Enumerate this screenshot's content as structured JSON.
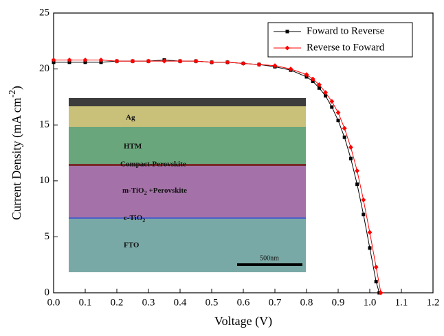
{
  "chart_data": {
    "type": "line",
    "x_label": "Voltage (V)",
    "y_label": {
      "text": "Current Density (mA cm",
      "sup": "-2",
      "after": ")"
    },
    "xlim": [
      0,
      1.2
    ],
    "xticks": [
      {
        "value": 0,
        "label": "0.0"
      },
      0.1,
      0.2,
      0.3,
      0.4,
      0.5,
      0.6,
      0.7,
      0.8,
      0.9,
      {
        "value": 1,
        "label": "1.0"
      },
      1.1,
      1.2
    ],
    "ylim": [
      0,
      25
    ],
    "yticks": [
      0,
      5,
      10,
      15,
      20,
      25
    ],
    "legend": "upper right",
    "series": [
      {
        "name": "Foward to Reverse",
        "color": "#000000",
        "marker": "square",
        "x": [
          0,
          0.05,
          0.1,
          0.15,
          0.2,
          0.25,
          0.3,
          0.35,
          0.4,
          0.45,
          0.5,
          0.55,
          0.6,
          0.65,
          0.7,
          0.75,
          0.8,
          0.82,
          0.84,
          0.86,
          0.88,
          0.9,
          0.92,
          0.94,
          0.96,
          0.98,
          1.0,
          1.02,
          1.03
        ],
        "values": [
          20.6,
          20.6,
          20.6,
          20.6,
          20.7,
          20.7,
          20.7,
          20.8,
          20.7,
          20.7,
          20.6,
          20.6,
          20.5,
          20.4,
          20.2,
          19.9,
          19.3,
          18.9,
          18.3,
          17.6,
          16.6,
          15.4,
          13.9,
          12.0,
          9.7,
          7.0,
          4.0,
          1.0,
          0
        ]
      },
      {
        "name": "Reverse to Foward",
        "color": "#ff0000",
        "marker": "diamond",
        "x": [
          0,
          0.05,
          0.1,
          0.15,
          0.2,
          0.25,
          0.3,
          0.35,
          0.4,
          0.45,
          0.5,
          0.55,
          0.6,
          0.65,
          0.7,
          0.75,
          0.8,
          0.82,
          0.84,
          0.86,
          0.88,
          0.9,
          0.92,
          0.94,
          0.96,
          0.98,
          1.0,
          1.02,
          1.035
        ],
        "values": [
          20.8,
          20.8,
          20.8,
          20.8,
          20.7,
          20.7,
          20.7,
          20.7,
          20.7,
          20.7,
          20.6,
          20.6,
          20.5,
          20.4,
          20.3,
          20.0,
          19.5,
          19.1,
          18.6,
          17.9,
          17.1,
          16.1,
          14.7,
          13.0,
          10.9,
          8.3,
          5.4,
          2.3,
          0
        ]
      }
    ],
    "inset": {
      "layers": [
        "Ag",
        "HTM",
        "Compact-Perovskite",
        {
          "text": "m-TiO",
          "sub": "2",
          "after": " +Perovskite"
        },
        {
          "text": "c-TiO",
          "sub": "2"
        },
        "FTO"
      ],
      "scale_bar": "500nm"
    }
  }
}
